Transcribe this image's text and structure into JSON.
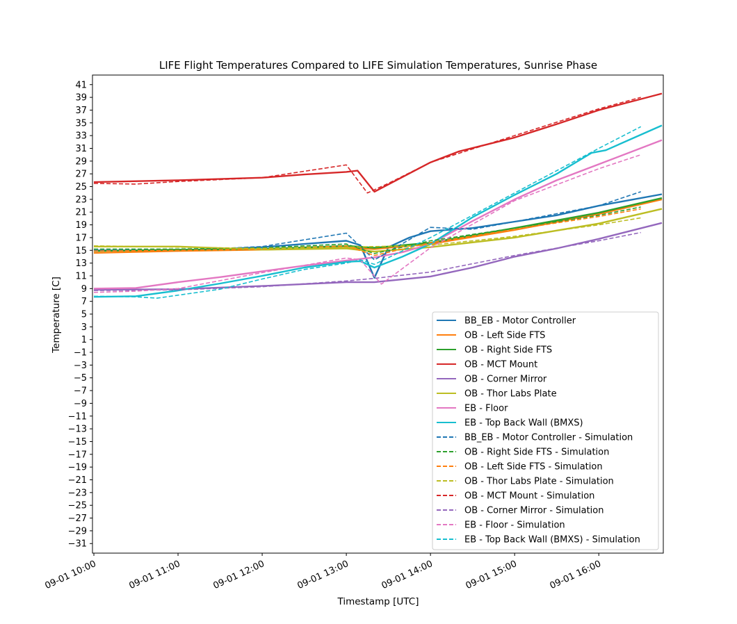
{
  "chart_data": {
    "type": "line",
    "title": "LIFE Flight Temperatures Compared to LIFE Simulation Temperatures, Sunrise Phase",
    "xlabel": "Timestamp [UTC]",
    "ylabel": "Temperature [C]",
    "xlim": [
      "09-01 09:59",
      "09-01 16:46"
    ],
    "ylim": [
      -32.5,
      42.5
    ],
    "x_ticks": [
      "09-01 10:00",
      "09-01 11:00",
      "09-01 12:00",
      "09-01 13:00",
      "09-01 14:00",
      "09-01 15:00",
      "09-01 16:00"
    ],
    "y_ticks": [
      41,
      39,
      37,
      35,
      33,
      31,
      29,
      27,
      25,
      23,
      21,
      19,
      17,
      15,
      13,
      11,
      9,
      7,
      5,
      3,
      1,
      -1,
      -3,
      -5,
      -7,
      -9,
      -11,
      -13,
      -15,
      -17,
      -19,
      -21,
      -23,
      -25,
      -27,
      -29,
      -31
    ],
    "legend_position": "lower right",
    "grid": false,
    "series": [
      {
        "name": "BB_EB - Motor Controller",
        "color": "#1f77b4",
        "style": "solid",
        "points": [
          [
            "09-01 10:00",
            15.0
          ],
          [
            "09-01 10:30",
            15.0
          ],
          [
            "09-01 11:00",
            15.0
          ],
          [
            "09-01 11:30",
            15.2
          ],
          [
            "09-01 12:00",
            15.5
          ],
          [
            "09-01 12:30",
            16.0
          ],
          [
            "09-01 13:00",
            16.5
          ],
          [
            "09-01 13:10",
            15.8
          ],
          [
            "09-01 13:20",
            10.7
          ],
          [
            "09-01 13:30",
            15.5
          ],
          [
            "09-01 13:45",
            17.0
          ],
          [
            "09-01 14:00",
            18.0
          ],
          [
            "09-01 14:30",
            18.5
          ],
          [
            "09-01 15:00",
            19.5
          ],
          [
            "09-01 15:30",
            20.5
          ],
          [
            "09-01 16:00",
            22.0
          ],
          [
            "09-01 16:45",
            23.8
          ]
        ]
      },
      {
        "name": "OB - Left Side FTS",
        "color": "#ff7f0e",
        "style": "solid",
        "points": [
          [
            "09-01 10:00",
            14.6
          ],
          [
            "09-01 11:00",
            14.9
          ],
          [
            "09-01 12:00",
            15.1
          ],
          [
            "09-01 13:00",
            15.4
          ],
          [
            "09-01 13:20",
            15.2
          ],
          [
            "09-01 14:00",
            16.0
          ],
          [
            "09-01 15:00",
            18.2
          ],
          [
            "09-01 16:00",
            20.7
          ],
          [
            "09-01 16:45",
            23.0
          ]
        ]
      },
      {
        "name": "OB - Right Side FTS",
        "color": "#2ca02c",
        "style": "solid",
        "points": [
          [
            "09-01 10:00",
            14.9
          ],
          [
            "09-01 11:00",
            15.1
          ],
          [
            "09-01 12:00",
            15.2
          ],
          [
            "09-01 13:00",
            15.7
          ],
          [
            "09-01 13:20",
            15.4
          ],
          [
            "09-01 14:00",
            16.2
          ],
          [
            "09-01 15:00",
            18.5
          ],
          [
            "09-01 16:00",
            20.9
          ],
          [
            "09-01 16:45",
            23.2
          ]
        ]
      },
      {
        "name": "OB - MCT Mount",
        "color": "#d62728",
        "style": "solid",
        "points": [
          [
            "09-01 10:00",
            25.7
          ],
          [
            "09-01 11:00",
            26.0
          ],
          [
            "09-01 12:00",
            26.4
          ],
          [
            "09-01 12:30",
            26.9
          ],
          [
            "09-01 13:00",
            27.3
          ],
          [
            "09-01 13:08",
            27.5
          ],
          [
            "09-01 13:20",
            24.2
          ],
          [
            "09-01 13:40",
            26.5
          ],
          [
            "09-01 14:00",
            28.8
          ],
          [
            "09-01 14:20",
            30.5
          ],
          [
            "09-01 15:00",
            32.7
          ],
          [
            "09-01 15:30",
            34.8
          ],
          [
            "09-01 16:00",
            37.0
          ],
          [
            "09-01 16:45",
            39.6
          ]
        ]
      },
      {
        "name": "OB - Corner Mirror",
        "color": "#9467bd",
        "style": "solid",
        "points": [
          [
            "09-01 10:00",
            8.8
          ],
          [
            "09-01 11:00",
            8.9
          ],
          [
            "09-01 12:00",
            9.4
          ],
          [
            "09-01 13:00",
            10.0
          ],
          [
            "09-01 13:20",
            10.0
          ],
          [
            "09-01 14:00",
            10.9
          ],
          [
            "09-01 14:30",
            12.3
          ],
          [
            "09-01 15:00",
            14.0
          ],
          [
            "09-01 15:30",
            15.3
          ],
          [
            "09-01 16:00",
            16.8
          ],
          [
            "09-01 16:45",
            19.3
          ]
        ]
      },
      {
        "name": "OB - Thor Labs Plate",
        "color": "#bcbd22",
        "style": "solid",
        "points": [
          [
            "09-01 10:00",
            15.6
          ],
          [
            "09-01 11:00",
            15.6
          ],
          [
            "09-01 12:00",
            15.1
          ],
          [
            "09-01 13:00",
            15.3
          ],
          [
            "09-01 13:20",
            14.8
          ],
          [
            "09-01 14:00",
            15.5
          ],
          [
            "09-01 15:00",
            17.0
          ],
          [
            "09-01 16:00",
            19.2
          ],
          [
            "09-01 16:45",
            21.5
          ]
        ]
      },
      {
        "name": "EB - Floor",
        "color": "#e377c2",
        "style": "solid",
        "points": [
          [
            "09-01 10:00",
            9.0
          ],
          [
            "09-01 10:30",
            9.1
          ],
          [
            "09-01 11:00",
            10.0
          ],
          [
            "09-01 11:30",
            10.8
          ],
          [
            "09-01 12:00",
            11.7
          ],
          [
            "09-01 12:30",
            12.6
          ],
          [
            "09-01 13:00",
            13.4
          ],
          [
            "09-01 13:20",
            13.9
          ],
          [
            "09-01 13:40",
            14.7
          ],
          [
            "09-01 14:00",
            16.0
          ],
          [
            "09-01 14:30",
            19.6
          ],
          [
            "09-01 15:00",
            23.0
          ],
          [
            "09-01 15:30",
            26.0
          ],
          [
            "09-01 16:00",
            28.5
          ],
          [
            "09-01 16:45",
            32.3
          ]
        ]
      },
      {
        "name": "EB - Top Back Wall (BMXS)",
        "color": "#17becf",
        "style": "solid",
        "points": [
          [
            "09-01 10:00",
            7.7
          ],
          [
            "09-01 10:30",
            7.8
          ],
          [
            "09-01 11:00",
            8.7
          ],
          [
            "09-01 11:30",
            9.8
          ],
          [
            "09-01 12:00",
            11.0
          ],
          [
            "09-01 12:30",
            12.3
          ],
          [
            "09-01 13:00",
            13.2
          ],
          [
            "09-01 13:10",
            13.3
          ],
          [
            "09-01 13:20",
            12.3
          ],
          [
            "09-01 13:40",
            14.0
          ],
          [
            "09-01 14:00",
            16.0
          ],
          [
            "09-01 14:30",
            20.2
          ],
          [
            "09-01 15:00",
            23.7
          ],
          [
            "09-01 15:30",
            27.0
          ],
          [
            "09-01 15:55",
            30.3
          ],
          [
            "09-01 16:05",
            30.7
          ],
          [
            "09-01 16:45",
            34.6
          ]
        ]
      },
      {
        "name": "BB_EB - Motor Controller - Simulation",
        "color": "#1f77b4",
        "style": "dashed",
        "points": [
          [
            "09-01 10:00",
            15.0
          ],
          [
            "09-01 11:00",
            15.0
          ],
          [
            "09-01 12:00",
            15.6
          ],
          [
            "09-01 13:00",
            17.7
          ],
          [
            "09-01 13:20",
            13.5
          ],
          [
            "09-01 14:00",
            18.6
          ],
          [
            "09-01 14:30",
            18.3
          ],
          [
            "09-01 15:00",
            19.5
          ],
          [
            "09-01 16:00",
            22.0
          ],
          [
            "09-01 16:30",
            24.2
          ]
        ]
      },
      {
        "name": "OB - Right Side FTS - Simulation",
        "color": "#2ca02c",
        "style": "dashed",
        "points": [
          [
            "09-01 10:00",
            15.2
          ],
          [
            "09-01 11:00",
            15.2
          ],
          [
            "09-01 12:00",
            15.4
          ],
          [
            "09-01 13:00",
            16.0
          ],
          [
            "09-01 13:20",
            14.5
          ],
          [
            "09-01 14:00",
            16.5
          ],
          [
            "09-01 15:00",
            18.5
          ],
          [
            "09-01 16:00",
            20.5
          ],
          [
            "09-01 16:30",
            21.8
          ]
        ]
      },
      {
        "name": "OB - Left Side FTS - Simulation",
        "color": "#ff7f0e",
        "style": "dashed",
        "points": [
          [
            "09-01 10:00",
            14.9
          ],
          [
            "09-01 11:00",
            15.0
          ],
          [
            "09-01 12:00",
            15.2
          ],
          [
            "09-01 13:00",
            15.7
          ],
          [
            "09-01 13:20",
            14.2
          ],
          [
            "09-01 14:00",
            16.2
          ],
          [
            "09-01 15:00",
            18.3
          ],
          [
            "09-01 16:00",
            20.3
          ],
          [
            "09-01 16:30",
            21.5
          ]
        ]
      },
      {
        "name": "OB - Thor Labs Plate - Simulation",
        "color": "#bcbd22",
        "style": "dashed",
        "points": [
          [
            "09-01 10:00",
            15.7
          ],
          [
            "09-01 11:00",
            15.5
          ],
          [
            "09-01 12:00",
            15.3
          ],
          [
            "09-01 13:00",
            15.5
          ],
          [
            "09-01 13:20",
            15.6
          ],
          [
            "09-01 14:00",
            15.8
          ],
          [
            "09-01 15:00",
            17.2
          ],
          [
            "09-01 16:00",
            19.0
          ],
          [
            "09-01 16:30",
            20.1
          ]
        ]
      },
      {
        "name": "OB - MCT Mount - Simulation",
        "color": "#d62728",
        "style": "dashed",
        "points": [
          [
            "09-01 10:00",
            25.5
          ],
          [
            "09-01 10:30",
            25.4
          ],
          [
            "09-01 11:00",
            25.8
          ],
          [
            "09-01 12:00",
            26.4
          ],
          [
            "09-01 13:00",
            28.4
          ],
          [
            "09-01 13:15",
            24.0
          ],
          [
            "09-01 13:30",
            25.5
          ],
          [
            "09-01 14:00",
            28.8
          ],
          [
            "09-01 15:00",
            33.0
          ],
          [
            "09-01 16:00",
            37.2
          ],
          [
            "09-01 16:30",
            39.0
          ]
        ]
      },
      {
        "name": "OB - Corner Mirror - Simulation",
        "color": "#9467bd",
        "style": "dashed",
        "points": [
          [
            "09-01 10:00",
            8.7
          ],
          [
            "09-01 11:00",
            8.8
          ],
          [
            "09-01 12:00",
            9.3
          ],
          [
            "09-01 13:00",
            10.2
          ],
          [
            "09-01 13:20",
            10.6
          ],
          [
            "09-01 14:00",
            11.6
          ],
          [
            "09-01 15:00",
            14.2
          ],
          [
            "09-01 16:00",
            16.5
          ],
          [
            "09-01 16:30",
            17.8
          ]
        ]
      },
      {
        "name": "EB - Floor - Simulation",
        "color": "#e377c2",
        "style": "dashed",
        "points": [
          [
            "09-01 10:00",
            8.4
          ],
          [
            "09-01 10:30",
            8.6
          ],
          [
            "09-01 11:00",
            9.0
          ],
          [
            "09-01 12:00",
            11.5
          ],
          [
            "09-01 13:00",
            13.8
          ],
          [
            "09-01 13:10",
            13.5
          ],
          [
            "09-01 13:25",
            9.7
          ],
          [
            "09-01 14:00",
            15.4
          ],
          [
            "09-01 15:00",
            22.8
          ],
          [
            "09-01 16:00",
            27.8
          ],
          [
            "09-01 16:30",
            30.0
          ]
        ]
      },
      {
        "name": "EB - Top Back Wall (BMXS) - Simulation",
        "color": "#17becf",
        "style": "dashed",
        "points": [
          [
            "09-01 10:00",
            7.8
          ],
          [
            "09-01 10:30",
            7.7
          ],
          [
            "09-01 10:45",
            7.5
          ],
          [
            "09-01 11:30",
            8.9
          ],
          [
            "09-01 12:00",
            10.5
          ],
          [
            "09-01 12:30",
            12.0
          ],
          [
            "09-01 13:00",
            13.0
          ],
          [
            "09-01 13:10",
            13.5
          ],
          [
            "09-01 13:20",
            12.8
          ],
          [
            "09-01 14:00",
            17.0
          ],
          [
            "09-01 15:00",
            24.0
          ],
          [
            "09-01 16:00",
            31.0
          ],
          [
            "09-01 16:30",
            34.4
          ]
        ]
      }
    ]
  }
}
